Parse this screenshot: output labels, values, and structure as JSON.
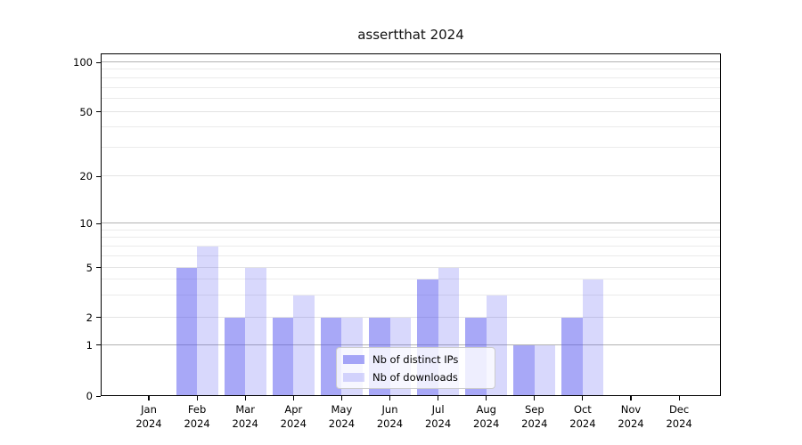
{
  "chart_data": {
    "type": "bar",
    "title": "assertthat 2024",
    "categories": [
      "Jan 2024",
      "Feb 2024",
      "Mar 2024",
      "Apr 2024",
      "May 2024",
      "Jun 2024",
      "Jul 2024",
      "Aug 2024",
      "Sep 2024",
      "Oct 2024",
      "Nov 2024",
      "Dec 2024"
    ],
    "series": [
      {
        "name": "Nb of distinct IPs",
        "base_color": "#5555f0",
        "fill_alpha": 0.51,
        "apparent_color": "#a8a8f8",
        "values": [
          0,
          5,
          2,
          2,
          2,
          2,
          4,
          2,
          1,
          2,
          0,
          0
        ]
      },
      {
        "name": "Nb of downloads",
        "base_color": "#5555f0",
        "fill_alpha": 0.23,
        "apparent_color": "#d8d8fb",
        "values": [
          0,
          7,
          5,
          3,
          2,
          2,
          5,
          3,
          1,
          4,
          0,
          0
        ]
      }
    ],
    "xlabel": "",
    "ylabel": "",
    "yscale": "log-like",
    "ylim": [
      0,
      100
    ],
    "y_tick_labels": [
      0,
      1,
      2,
      5,
      10,
      20,
      50,
      100
    ],
    "y_power_of_ten_ticks": [
      1,
      10,
      100
    ],
    "y_minor_gridlines": [
      3,
      4,
      6,
      7,
      8,
      9,
      30,
      40,
      60,
      70,
      80,
      90
    ],
    "grid": true,
    "legend_position": "lower center",
    "axis_color": "#000000",
    "major_grid_color": "#b2b2b2",
    "minor_grid_color": "#ebebeb"
  }
}
